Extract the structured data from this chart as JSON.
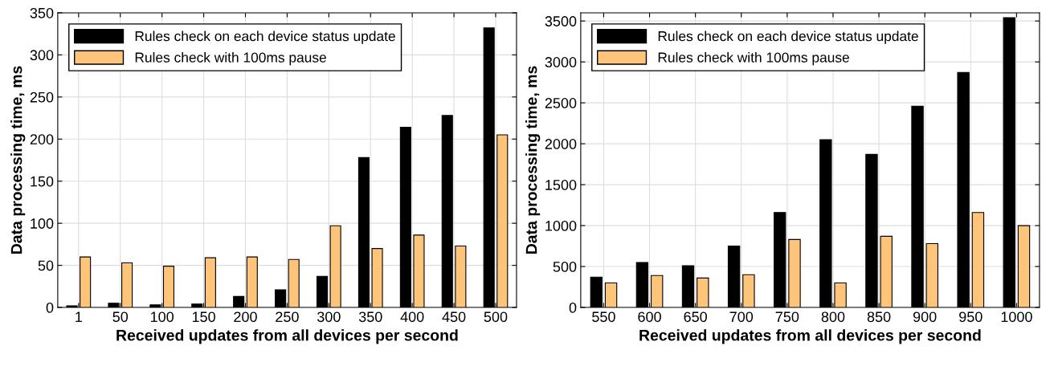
{
  "chart_data": [
    {
      "type": "bar",
      "xlabel": "Received updates from all devices per second",
      "ylabel": "Data processing time, ms",
      "categories": [
        "1",
        "50",
        "100",
        "150",
        "200",
        "250",
        "300",
        "350",
        "400",
        "450",
        "500"
      ],
      "series": [
        {
          "name": "Rules check on each device status update",
          "color": "#000000",
          "values": [
            2,
            5,
            3,
            4,
            13,
            21,
            37,
            178,
            214,
            228,
            332
          ]
        },
        {
          "name": "Rules check with 100ms pause",
          "color": "#fec57a",
          "values": [
            60,
            53,
            49,
            59,
            60,
            57,
            97,
            70,
            86,
            73,
            205
          ]
        }
      ],
      "ylim": [
        0,
        350
      ],
      "yticks": [
        0,
        50,
        100,
        150,
        200,
        250,
        300,
        350
      ],
      "grid": true,
      "legend": "top left"
    },
    {
      "type": "bar",
      "xlabel": "Received updates from all devices per second",
      "ylabel": "Data processing time, ms",
      "categories": [
        "550",
        "600",
        "650",
        "700",
        "750",
        "800",
        "850",
        "900",
        "950",
        "1000"
      ],
      "series": [
        {
          "name": "Rules check on each device status update",
          "color": "#000000",
          "values": [
            370,
            550,
            510,
            750,
            1160,
            2050,
            1870,
            2460,
            2870,
            3540
          ]
        },
        {
          "name": "Rules check with 100ms pause",
          "color": "#fec57a",
          "values": [
            300,
            390,
            360,
            400,
            830,
            300,
            870,
            780,
            1160,
            1000
          ]
        }
      ],
      "ylim": [
        0,
        3600
      ],
      "yticks": [
        0,
        500,
        1000,
        1500,
        2000,
        2500,
        3000,
        3500
      ],
      "grid": true,
      "legend": "top left"
    }
  ]
}
